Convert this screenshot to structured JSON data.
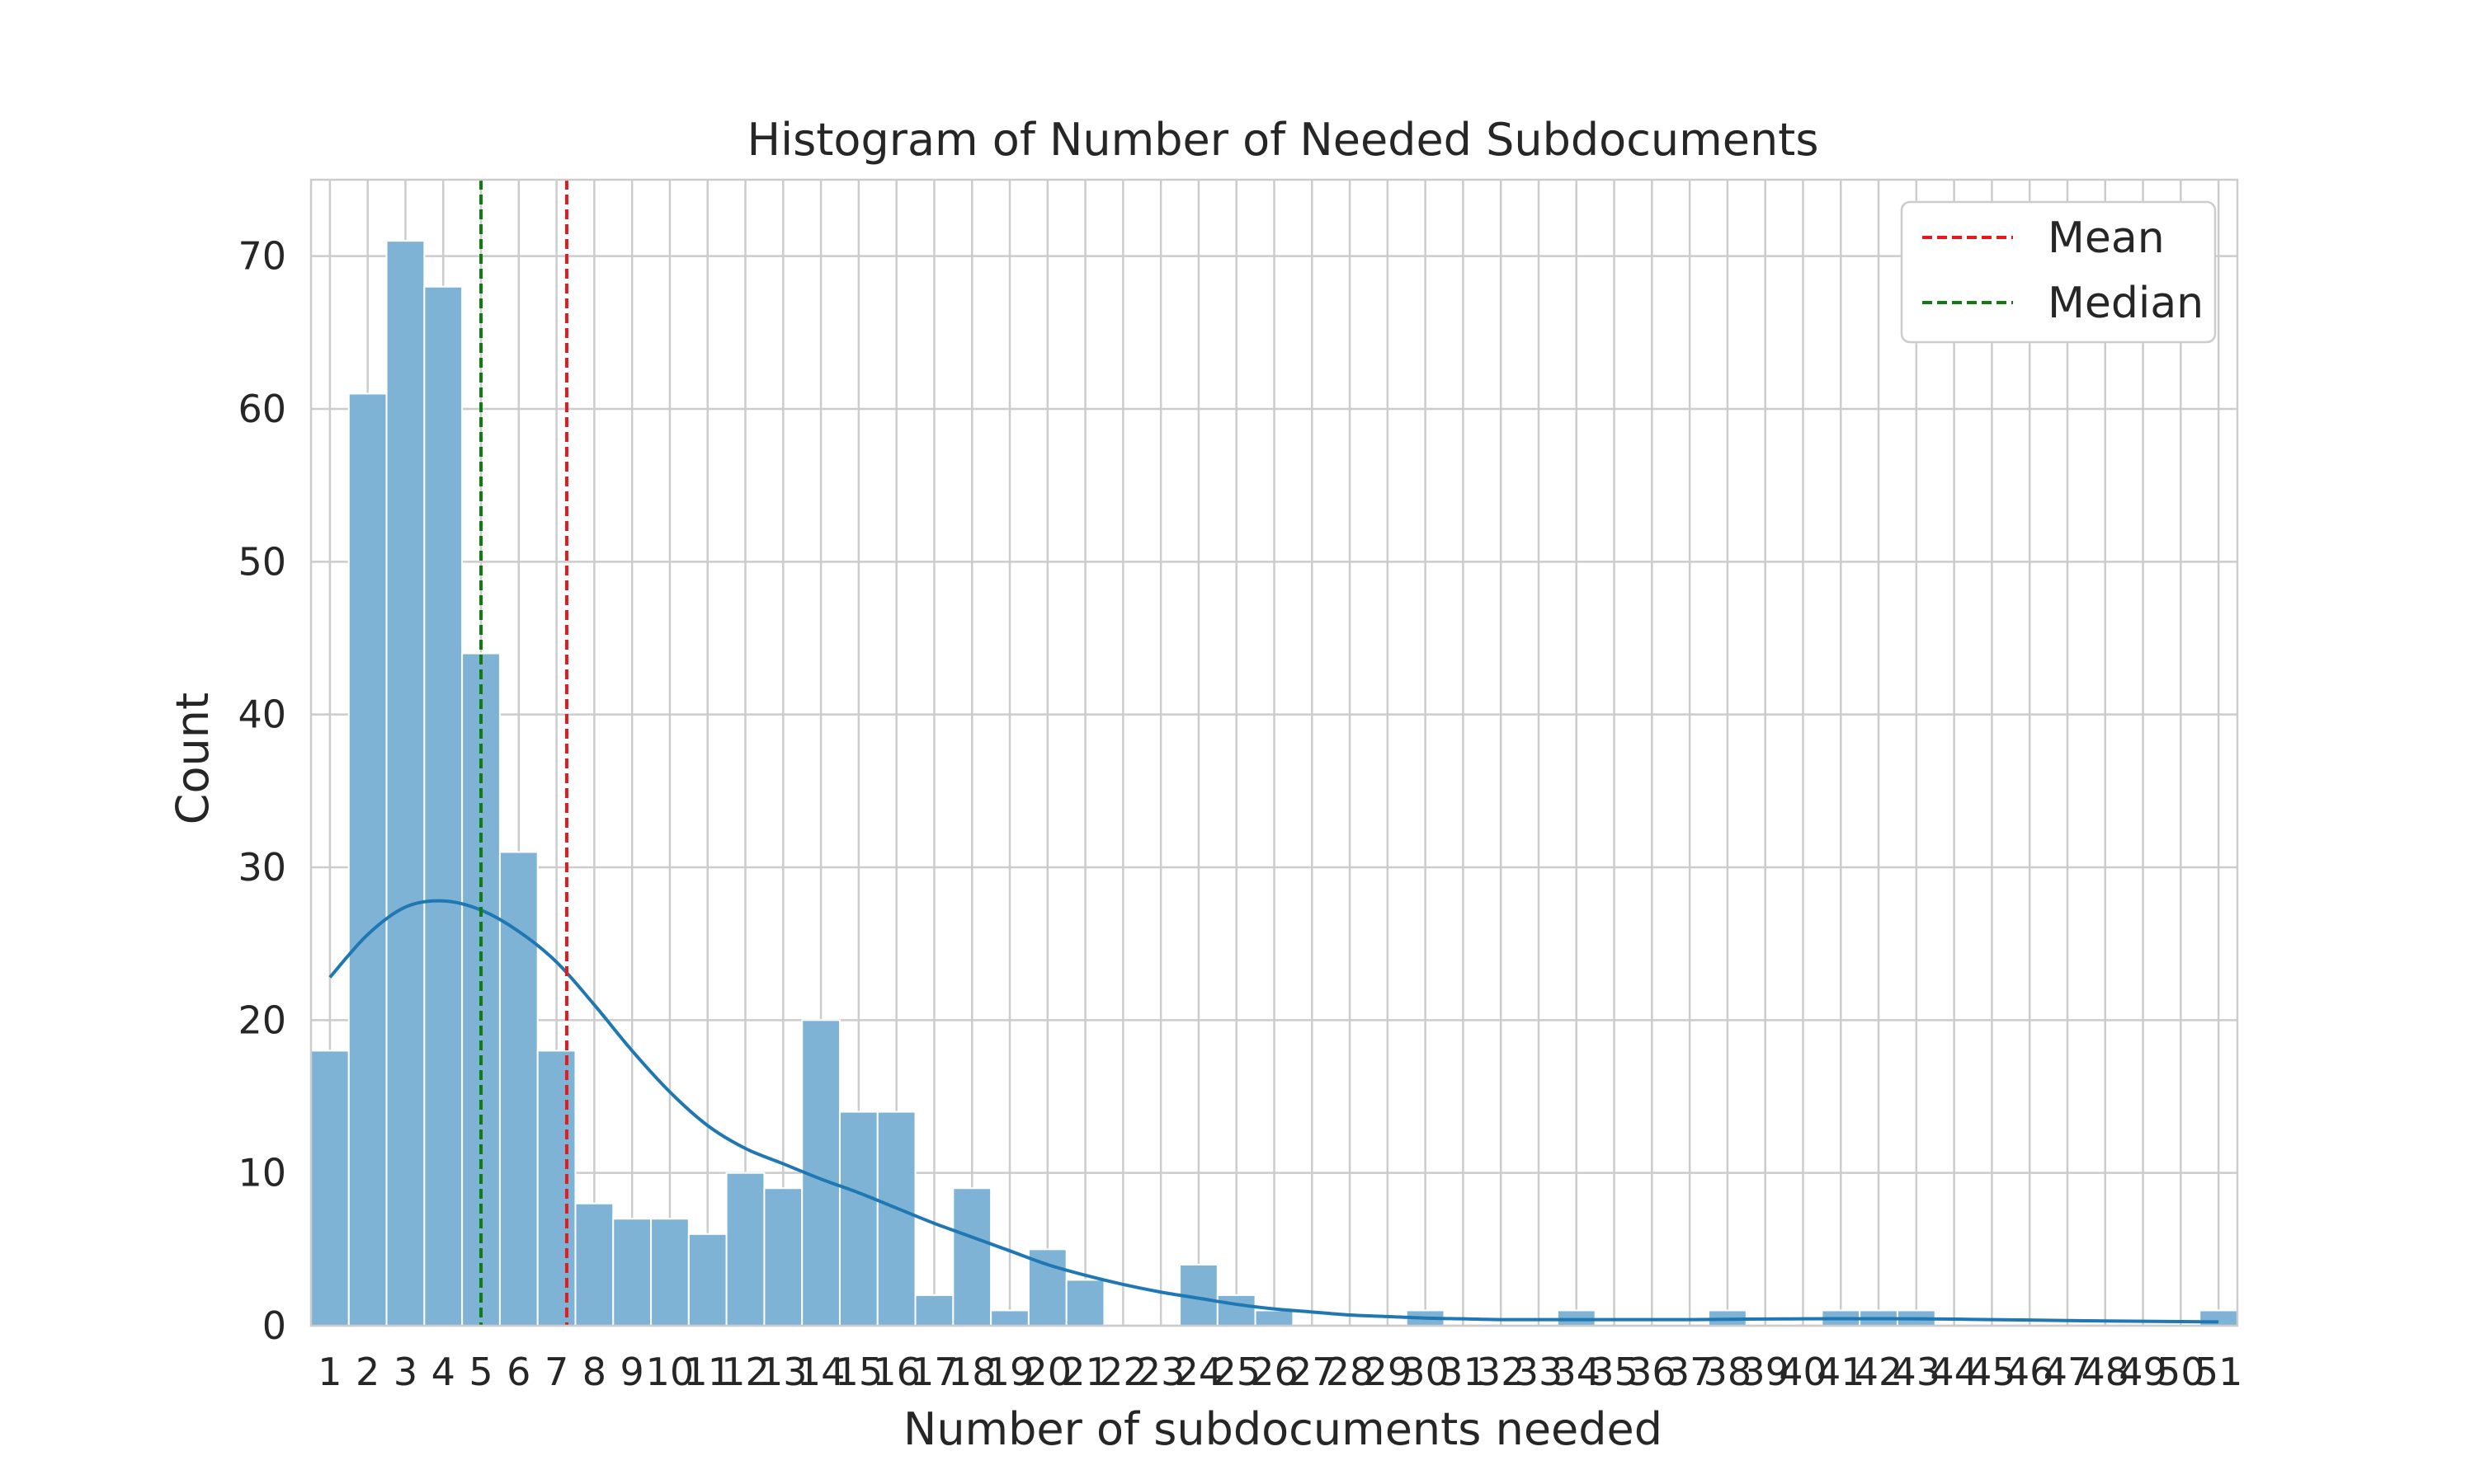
{
  "chart_data": {
    "type": "bar",
    "title": "Histogram of Number of Needed Subdocuments",
    "xlabel": "Number of subdocuments needed",
    "ylabel": "Count",
    "ylim": [
      0,
      75
    ],
    "xlim": [
      0.5,
      51.5
    ],
    "yticks": [
      0,
      10,
      20,
      30,
      40,
      50,
      60,
      70
    ],
    "categories": [
      "1",
      "2",
      "3",
      "4",
      "5",
      "6",
      "7",
      "8",
      "9",
      "10",
      "11",
      "12",
      "13",
      "14",
      "15",
      "16",
      "17",
      "18",
      "19",
      "20",
      "21",
      "22",
      "23",
      "24",
      "25",
      "26",
      "27",
      "28",
      "29",
      "30",
      "31",
      "32",
      "33",
      "34",
      "35",
      "36",
      "37",
      "38",
      "39",
      "40",
      "41",
      "42",
      "43",
      "44",
      "45",
      "46",
      "47",
      "48",
      "49",
      "50",
      "51"
    ],
    "values": [
      18,
      61,
      71,
      68,
      44,
      31,
      18,
      8,
      7,
      7,
      6,
      10,
      9,
      20,
      14,
      14,
      2,
      9,
      1,
      5,
      3,
      0,
      0,
      4,
      2,
      1,
      0,
      0,
      0,
      1,
      0,
      0,
      0,
      1,
      0,
      0,
      0,
      1,
      0,
      0,
      1,
      1,
      1,
      0,
      0,
      0,
      0,
      0,
      0,
      0,
      1
    ],
    "grid": true,
    "legend_position": "top-right",
    "lines": {
      "mean": {
        "label": "Mean",
        "x": 7.27,
        "color": "#e41a1c"
      },
      "median": {
        "label": "Median",
        "x": 5.0,
        "color": "#117a11"
      }
    },
    "kde": {
      "color": "#1f77b4",
      "x": [
        1,
        2,
        3,
        4,
        5,
        6,
        7,
        8,
        9,
        10,
        11,
        12,
        13,
        14,
        15,
        16,
        17,
        18,
        19,
        20,
        21,
        22,
        23,
        24,
        25,
        26,
        27,
        28,
        29,
        30,
        31,
        32,
        33,
        34,
        35,
        36,
        37,
        38,
        39,
        40,
        41,
        42,
        43,
        44,
        45,
        46,
        47,
        48,
        49,
        50,
        51
      ],
      "y": [
        22.8,
        25.6,
        27.4,
        27.8,
        27.2,
        25.8,
        23.8,
        21.0,
        18.0,
        15.3,
        13.1,
        11.6,
        10.6,
        9.6,
        8.7,
        7.7,
        6.7,
        5.8,
        4.9,
        4.0,
        3.3,
        2.7,
        2.2,
        1.8,
        1.4,
        1.1,
        0.9,
        0.7,
        0.6,
        0.5,
        0.45,
        0.4,
        0.4,
        0.4,
        0.4,
        0.4,
        0.4,
        0.42,
        0.44,
        0.45,
        0.46,
        0.46,
        0.45,
        0.43,
        0.4,
        0.37,
        0.34,
        0.31,
        0.29,
        0.27,
        0.25
      ]
    },
    "colors": {
      "bar": "#7fb3d5",
      "kde": "#1f77b4",
      "grid": "#cccccc"
    }
  }
}
